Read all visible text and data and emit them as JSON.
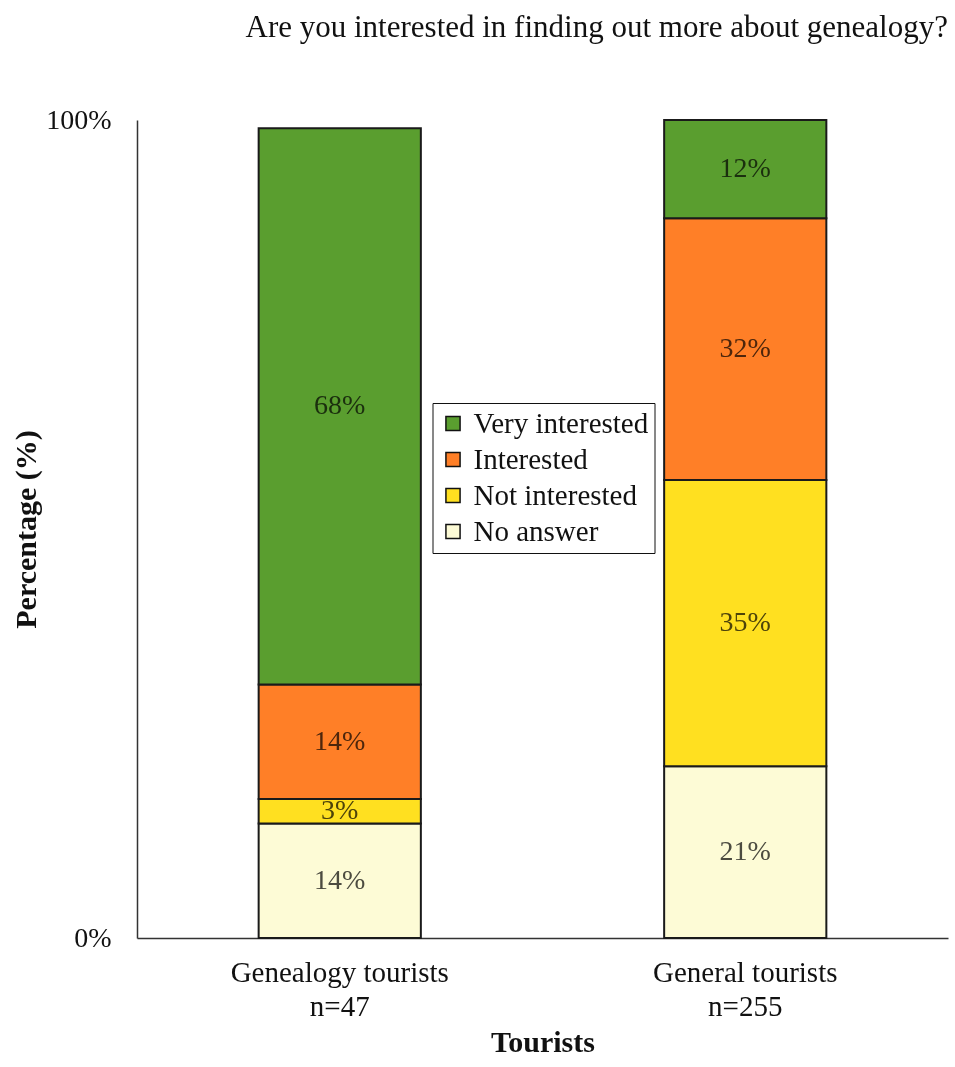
{
  "chart_data": {
    "type": "bar",
    "title": "Are you interested in finding out more about genealogy?",
    "xlabel": "Tourists",
    "ylabel": "Percentage (%)",
    "categories": [
      "Genealogy tourists\nn=47",
      "General tourists\nn=255"
    ],
    "stacked": true,
    "ylim": [
      0,
      100
    ],
    "yticks": [
      {
        "value": 0,
        "label": "0%"
      },
      {
        "value": 100,
        "label": "100%"
      }
    ],
    "grid": false,
    "legend": "center",
    "series": [
      {
        "name": "No answer",
        "color": "#fdfbd6",
        "values": [
          14,
          21
        ],
        "value_labels": [
          "14%",
          "21%"
        ]
      },
      {
        "name": "Not interested",
        "color": "#ffe020",
        "values": [
          3,
          35
        ],
        "value_labels": [
          "3%",
          "35%"
        ]
      },
      {
        "name": "Interested",
        "color": "#ff7f27",
        "values": [
          14,
          32
        ],
        "value_labels": [
          "14%",
          "32%"
        ]
      },
      {
        "name": "Very interested",
        "color": "#5a9e2f",
        "values": [
          68,
          12
        ],
        "value_labels": [
          "68%",
          "12%"
        ]
      }
    ]
  }
}
